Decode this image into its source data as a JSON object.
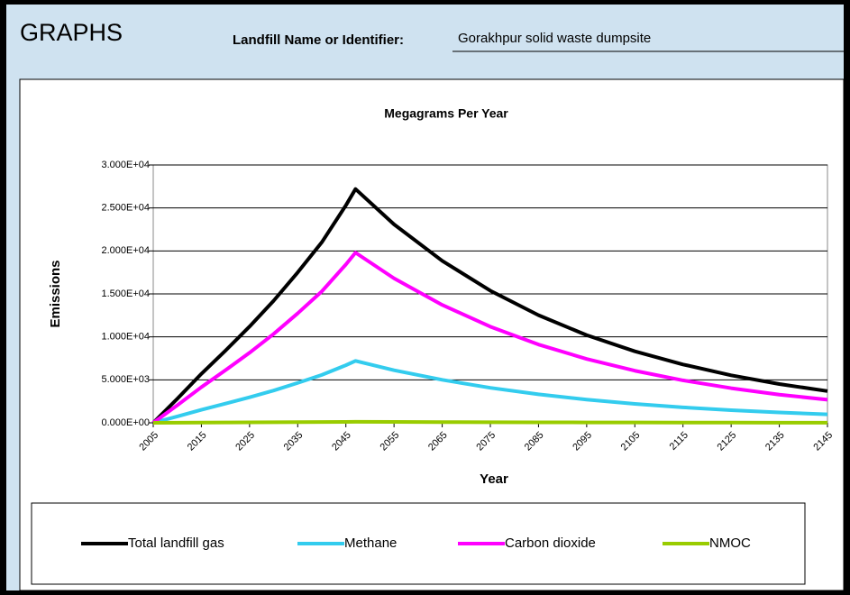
{
  "header": {
    "title": "GRAPHS",
    "field_label": "Landfill Name or Identifier:",
    "field_value": "Gorakhpur solid waste dumpsite"
  },
  "chart_data": {
    "type": "line",
    "title": "Megagrams Per Year",
    "x_label": "Year",
    "y_label": "Emissions",
    "x": [
      2005,
      2010,
      2015,
      2020,
      2025,
      2030,
      2035,
      2040,
      2045,
      2047,
      2055,
      2065,
      2075,
      2085,
      2095,
      2105,
      2115,
      2125,
      2135,
      2145
    ],
    "series": [
      {
        "name": "Total landfill gas",
        "color": "#000000",
        "values": [
          0,
          2800,
          5700,
          8400,
          11200,
          14200,
          17500,
          21000,
          25300,
          27200,
          23090,
          18850,
          15370,
          12520,
          10200,
          8320,
          6790,
          5530,
          4510,
          3690
        ]
      },
      {
        "name": "Methane",
        "color": "#33ccee",
        "values": [
          0,
          740,
          1510,
          2230,
          2970,
          3760,
          4640,
          5570,
          6700,
          7200,
          6120,
          5000,
          4070,
          3320,
          2700,
          2200,
          1800,
          1470,
          1200,
          980
        ]
      },
      {
        "name": "Carbon dioxide",
        "color": "#ff00ff",
        "values": [
          0,
          2040,
          4150,
          6120,
          8150,
          10340,
          12740,
          15290,
          18420,
          19800,
          16810,
          13720,
          11190,
          9110,
          7430,
          6060,
          4940,
          4030,
          3280,
          2690
        ]
      },
      {
        "name": "NMOC",
        "color": "#99cc00",
        "values": [
          0,
          12,
          25,
          36,
          48,
          61,
          75,
          90,
          109,
          117,
          99,
          81,
          66,
          54,
          44,
          36,
          29,
          24,
          19,
          16
        ]
      }
    ],
    "xlim": [
      2005,
      2145
    ],
    "xticks": [
      2005,
      2015,
      2025,
      2035,
      2045,
      2055,
      2065,
      2075,
      2085,
      2095,
      2105,
      2115,
      2125,
      2135,
      2145
    ],
    "ylim": [
      0,
      30000
    ],
    "yticks": [
      {
        "value": 0,
        "label": "0.000E+00"
      },
      {
        "value": 5000,
        "label": "5.000E+03"
      },
      {
        "value": 10000,
        "label": "1.000E+04"
      },
      {
        "value": 15000,
        "label": "1.500E+04"
      },
      {
        "value": 20000,
        "label": "2.000E+04"
      },
      {
        "value": 25000,
        "label": "2.500E+04"
      },
      {
        "value": 30000,
        "label": "3.000E+04"
      }
    ],
    "grid": true,
    "legend": "bottom"
  }
}
